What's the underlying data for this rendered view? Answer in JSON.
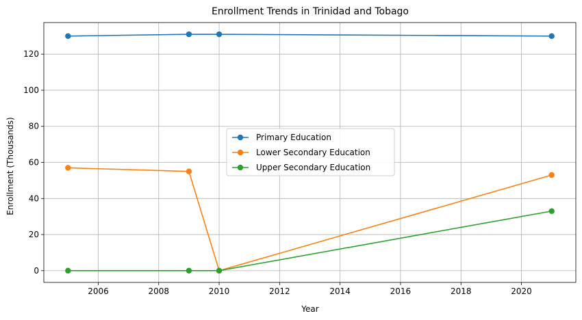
{
  "chart_data": {
    "type": "line",
    "title": "Enrollment Trends in Trinidad and Tobago",
    "xlabel": "Year",
    "ylabel": "Enrollment (Thousands)",
    "xlim": [
      2004.2,
      2021.8
    ],
    "ylim": [
      -6.5,
      137.5
    ],
    "xticks": [
      2006,
      2008,
      2010,
      2012,
      2014,
      2016,
      2018,
      2020
    ],
    "yticks": [
      0,
      20,
      40,
      60,
      80,
      100,
      120
    ],
    "grid": true,
    "legend_position": "center",
    "series": [
      {
        "name": "Primary Education",
        "color": "#1f77b4",
        "x": [
          2005,
          2009,
          2010,
          2021
        ],
        "y": [
          130,
          131,
          131,
          130
        ]
      },
      {
        "name": "Lower Secondary Education",
        "color": "#ff7f0e",
        "x": [
          2005,
          2009,
          2010,
          2021
        ],
        "y": [
          57,
          55,
          0,
          53
        ]
      },
      {
        "name": "Upper Secondary Education",
        "color": "#2ca02c",
        "x": [
          2005,
          2009,
          2010,
          2021
        ],
        "y": [
          0,
          0,
          0,
          33
        ]
      }
    ]
  }
}
